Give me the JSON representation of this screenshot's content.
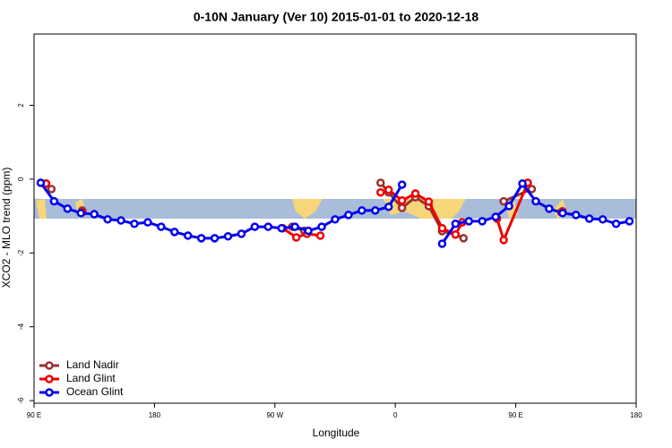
{
  "chart_data": {
    "type": "line",
    "title": "0-10N January (Ver 10)   2015-01-01 to 2020-12-18",
    "x_label": "Longitude",
    "y_label": "XCO2 - MLO trend (ppm)",
    "xlim": [
      90,
      540
    ],
    "xticks": [
      {
        "value": 90,
        "label": "90 E"
      },
      {
        "value": 180,
        "label": "180"
      },
      {
        "value": 270,
        "label": "90 W"
      },
      {
        "value": 360,
        "label": "0"
      },
      {
        "value": 450,
        "label": "90 E"
      },
      {
        "value": 540,
        "label": "180"
      }
    ],
    "ylim": [
      -6.07,
      3.93
    ],
    "yticks": [
      -6,
      -4,
      -2,
      0,
      2
    ],
    "legend": "lower left",
    "series": [
      {
        "name": "Land Nadir",
        "color": "#9b3030",
        "x": [
          99,
          103,
          null,
          126,
          null,
          283,
          292,
          null,
          349,
          355,
          365,
          375,
          385,
          395,
          405,
          411,
          null,
          441,
          462,
          null,
          485
        ],
        "values": [
          -0.12,
          -0.27,
          null,
          -0.85,
          null,
          -1.29,
          -1.4,
          null,
          -0.1,
          -0.36,
          -0.78,
          -0.49,
          -0.73,
          -1.41,
          -1.5,
          -1.6,
          null,
          -0.6,
          -0.27,
          null,
          -0.87
        ]
      },
      {
        "name": "Land Glint",
        "color": "#ee0000",
        "x": [
          99,
          null,
          126,
          null,
          276,
          286,
          294,
          304,
          null,
          349,
          355,
          365,
          375,
          385,
          395,
          405,
          410,
          null,
          436,
          441,
          459,
          null,
          484
        ],
        "values": [
          -0.12,
          null,
          -0.9,
          null,
          -1.33,
          -1.58,
          -1.48,
          -1.53,
          null,
          -0.36,
          -0.29,
          -0.58,
          -0.39,
          -0.61,
          -1.33,
          -1.5,
          -1.17,
          null,
          -1.07,
          -1.65,
          -0.1,
          null,
          -0.9
        ]
      },
      {
        "name": "Ocean Glint",
        "color": "#0000ee",
        "x": [
          95,
          105,
          115,
          125,
          135,
          145,
          155,
          165,
          175,
          185,
          195,
          205,
          215,
          225,
          235,
          245,
          255,
          265,
          275,
          285,
          295,
          305,
          315,
          325,
          335,
          345,
          355,
          365,
          375,
          385,
          395,
          405,
          415,
          425,
          435,
          445,
          455,
          465,
          475,
          485,
          495,
          505,
          515,
          525,
          535
        ],
        "values": [
          -0.1,
          -0.6,
          -0.8,
          -0.92,
          -0.95,
          -1.09,
          -1.12,
          -1.21,
          -1.17,
          -1.29,
          -1.43,
          -1.53,
          -1.6,
          -1.6,
          -1.55,
          -1.48,
          -1.29,
          -1.29,
          -1.33,
          -1.29,
          -1.4,
          -1.29,
          -1.09,
          -0.97,
          -0.85,
          -0.85,
          -0.75,
          -0.15,
          null,
          null,
          -1.75,
          -1.21,
          -1.14,
          -1.14,
          -1.02,
          -0.73,
          -0.12,
          -0.6,
          -0.8,
          -0.92,
          -0.97,
          -1.07,
          -1.09,
          -1.21,
          -1.14
        ]
      }
    ]
  }
}
